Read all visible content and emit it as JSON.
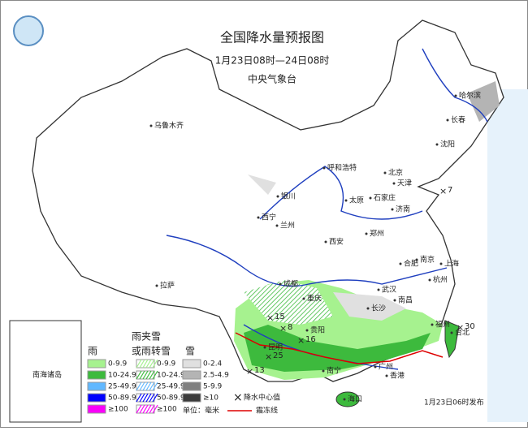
{
  "header": {
    "title": "全国降水量预报图",
    "time_range": "1月23日08时—24日08时",
    "issuer": "中央气象台"
  },
  "cities": [
    "乌鲁木齐",
    "哈尔滨",
    "长春",
    "沈阳",
    "呼和浩特",
    "北京",
    "天津",
    "银川",
    "太原",
    "石家庄",
    "济南",
    "西宁",
    "兰州",
    "郑州",
    "西安",
    "合肥",
    "南京",
    "上海",
    "杭州",
    "拉萨",
    "成都",
    "重庆",
    "武汉",
    "长沙",
    "南昌",
    "贵阳",
    "福州",
    "台北",
    "昆明",
    "南宁",
    "广州",
    "香港",
    "海口"
  ],
  "centers": [
    15,
    8,
    16,
    25,
    13,
    7,
    30
  ],
  "inset": {
    "label": "南海诸岛"
  },
  "legend": {
    "rain": {
      "label": "雨",
      "items": [
        {
          "label": "0-9.9",
          "color": "#a6f28f"
        },
        {
          "label": "10-24.9",
          "color": "#3dba3d"
        },
        {
          "label": "25-49.9",
          "color": "#61b8ff"
        },
        {
          "label": "50-89.9",
          "color": "#0000fe"
        },
        {
          "label": "≥100",
          "color": "#fa00fa"
        }
      ]
    },
    "sleet": {
      "label": [
        "雨夹雪",
        "或雨转雪"
      ],
      "items": [
        {
          "label": "0-9.9",
          "color": "#a6f28f"
        },
        {
          "label": "10-24.9",
          "color": "#3dba3d"
        },
        {
          "label": "25-49.9",
          "color": "#61b8ff"
        },
        {
          "label": "50-89.9",
          "color": "#0000fe"
        },
        {
          "label": "≥100",
          "color": "#fa00fa"
        }
      ]
    },
    "snow": {
      "label": "雪",
      "items": [
        {
          "label": "0-2.4",
          "color": "#e0e0e0"
        },
        {
          "label": "2.5-4.9",
          "color": "#b4b4b4"
        },
        {
          "label": "5-9.9",
          "color": "#7f7f7f"
        },
        {
          "label": "≥10",
          "color": "#3c3c3c"
        }
      ]
    },
    "center_label": "降水中心值",
    "unit": "单位：毫米",
    "frost_line": "霜冻线"
  },
  "issued": "1月23日06时发布"
}
